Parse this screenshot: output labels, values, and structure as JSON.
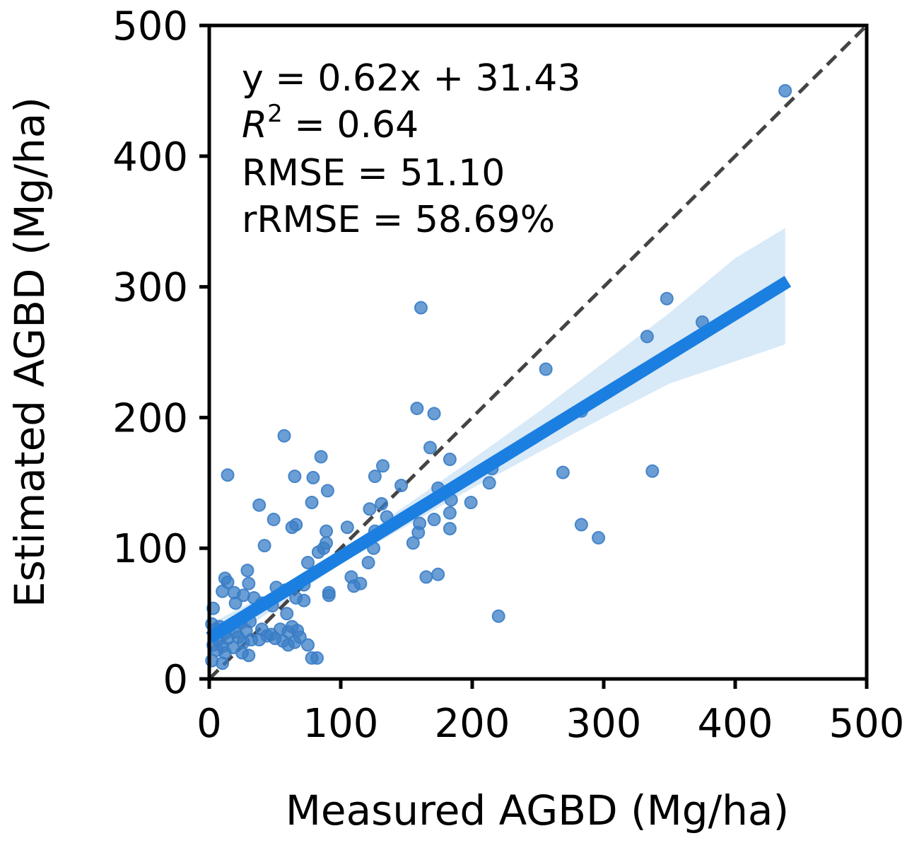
{
  "chart_data": {
    "type": "scatter",
    "title": "",
    "xlabel": "Measured AGBD (Mg/ha)",
    "ylabel": "Estimated AGBD (Mg/ha)",
    "xlim": [
      0,
      500
    ],
    "ylim": [
      0,
      500
    ],
    "xticks": [
      "0",
      "100",
      "200",
      "300",
      "400",
      "500"
    ],
    "yticks": [
      "0",
      "100",
      "200",
      "300",
      "400",
      "500"
    ],
    "grid": false,
    "legend": "none",
    "annotations": {
      "equation": "y = 0.62x + 31.43",
      "r2_symbol": "R",
      "r2_sup": "2",
      "r2_value": " = 0.64",
      "rmse": "RMSE = 51.10",
      "rrmse": "rRMSE = 58.69%"
    },
    "regression": {
      "slope": 0.62,
      "intercept": 31.43,
      "x_range": [
        0,
        440
      ]
    },
    "confidence_band": [
      {
        "x": 0,
        "lo": 20,
        "hi": 42
      },
      {
        "x": 50,
        "lo": 54,
        "hi": 68
      },
      {
        "x": 100,
        "lo": 88,
        "hi": 98
      },
      {
        "x": 150,
        "lo": 117,
        "hi": 133
      },
      {
        "x": 200,
        "lo": 146,
        "hi": 168
      },
      {
        "x": 250,
        "lo": 173,
        "hi": 204
      },
      {
        "x": 300,
        "lo": 200,
        "hi": 242
      },
      {
        "x": 350,
        "lo": 226,
        "hi": 280
      },
      {
        "x": 400,
        "lo": 243,
        "hi": 322
      },
      {
        "x": 438,
        "lo": 256,
        "hi": 345
      }
    ],
    "identity_line": {
      "style": "dashed",
      "from": [
        0,
        0
      ],
      "to": [
        500,
        500
      ]
    },
    "colors": {
      "points": "#3a7dc6",
      "regression": "#1a7fe0",
      "band": "#d8e9f8",
      "identity": "#444444"
    },
    "points": [
      [
        438,
        450
      ],
      [
        161,
        284
      ],
      [
        348,
        291
      ],
      [
        375,
        273
      ],
      [
        333,
        262
      ],
      [
        256,
        237
      ],
      [
        158,
        207
      ],
      [
        171,
        203
      ],
      [
        283,
        205
      ],
      [
        57,
        186
      ],
      [
        168,
        177
      ],
      [
        85,
        170
      ],
      [
        183,
        168
      ],
      [
        132,
        163
      ],
      [
        14,
        156
      ],
      [
        65,
        155
      ],
      [
        126,
        155
      ],
      [
        79,
        154
      ],
      [
        269,
        158
      ],
      [
        337,
        159
      ],
      [
        215,
        161
      ],
      [
        146,
        148
      ],
      [
        174,
        146
      ],
      [
        213,
        150
      ],
      [
        90,
        144
      ],
      [
        184,
        137
      ],
      [
        38,
        133
      ],
      [
        78,
        135
      ],
      [
        131,
        134
      ],
      [
        122,
        130
      ],
      [
        199,
        135
      ],
      [
        183,
        127
      ],
      [
        135,
        124
      ],
      [
        49,
        122
      ],
      [
        171,
        122
      ],
      [
        160,
        119
      ],
      [
        63,
        116
      ],
      [
        66,
        118
      ],
      [
        105,
        116
      ],
      [
        183,
        115
      ],
      [
        283,
        118
      ],
      [
        89,
        113
      ],
      [
        126,
        113
      ],
      [
        159,
        112
      ],
      [
        296,
        108
      ],
      [
        89,
        104
      ],
      [
        155,
        104
      ],
      [
        87,
        100
      ],
      [
        42,
        102
      ],
      [
        125,
        100
      ],
      [
        83,
        97
      ],
      [
        75,
        89
      ],
      [
        121,
        89
      ],
      [
        29,
        83
      ],
      [
        165,
        78
      ],
      [
        174,
        80
      ],
      [
        108,
        78
      ],
      [
        12,
        77
      ],
      [
        14,
        74
      ],
      [
        110,
        71
      ],
      [
        115,
        73
      ],
      [
        30,
        73
      ],
      [
        51,
        70
      ],
      [
        72,
        72
      ],
      [
        58,
        68
      ],
      [
        10,
        67
      ],
      [
        91,
        66
      ],
      [
        19,
        66
      ],
      [
        26,
        64
      ],
      [
        34,
        62
      ],
      [
        20,
        58
      ],
      [
        3,
        54
      ],
      [
        40,
        58
      ],
      [
        48,
        56
      ],
      [
        66,
        62
      ],
      [
        72,
        60
      ],
      [
        91,
        64
      ],
      [
        59,
        50
      ],
      [
        220,
        48
      ],
      [
        2,
        42
      ],
      [
        8,
        40
      ],
      [
        16,
        41
      ],
      [
        24,
        43
      ],
      [
        31,
        44
      ],
      [
        5,
        38
      ],
      [
        12,
        35
      ],
      [
        20,
        36
      ],
      [
        28,
        37
      ],
      [
        40,
        38
      ],
      [
        47,
        34
      ],
      [
        54,
        38
      ],
      [
        60,
        36
      ],
      [
        63,
        40
      ],
      [
        67,
        37
      ],
      [
        7,
        30
      ],
      [
        14,
        31
      ],
      [
        22,
        32
      ],
      [
        32,
        30
      ],
      [
        38,
        30
      ],
      [
        44,
        33
      ],
      [
        50,
        31
      ],
      [
        56,
        29
      ],
      [
        3,
        26
      ],
      [
        10,
        25
      ],
      [
        18,
        24
      ],
      [
        26,
        28
      ],
      [
        60,
        26
      ],
      [
        65,
        28
      ],
      [
        6,
        22
      ],
      [
        12,
        20
      ],
      [
        25,
        20
      ],
      [
        30,
        18
      ],
      [
        75,
        26
      ],
      [
        2,
        14
      ],
      [
        10,
        12
      ],
      [
        78,
        16
      ],
      [
        82,
        16
      ],
      [
        69,
        32
      ]
    ]
  }
}
